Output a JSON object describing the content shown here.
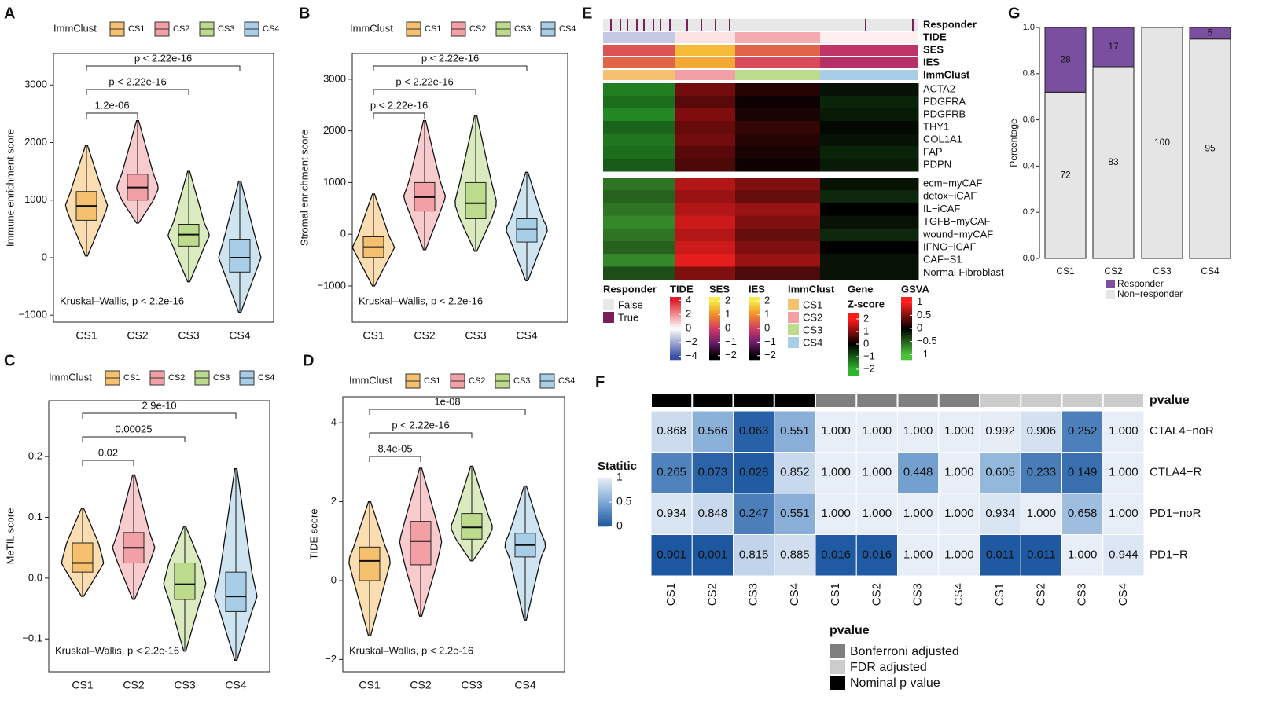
{
  "chart_data": [
    {
      "type": "box",
      "panel": "A",
      "ylabel": "Immune enrichment score",
      "legend_title": "ImmClust",
      "categories": [
        "CS1",
        "CS2",
        "CS3",
        "CS4"
      ],
      "colors": [
        "#f6c16f",
        "#f2a0a6",
        "#bcdb8c",
        "#a8cde6"
      ],
      "ylim": [
        -1120,
        3550
      ],
      "yticks": [
        {
          "value": -1000,
          "label": "−1000"
        },
        0,
        1000,
        2000,
        3000
      ],
      "stats": [
        {
          "min": 30,
          "q1": 650,
          "median": 900,
          "q3": 1150,
          "max": 1950
        },
        {
          "min": 600,
          "q1": 1000,
          "median": 1220,
          "q3": 1450,
          "max": 2380
        },
        {
          "min": -420,
          "q1": 200,
          "median": 400,
          "q3": 580,
          "max": 1500
        },
        {
          "min": -950,
          "q1": -250,
          "median": 0,
          "q3": 320,
          "max": 1330
        }
      ],
      "comparisons": [
        "1.2e-06",
        "p < 2.22e-16",
        "p < 2.22e-16"
      ],
      "annotation": "Kruskal–Wallis, p < 2.2e-16"
    },
    {
      "type": "box",
      "panel": "B",
      "ylabel": "Stromal enrichment score",
      "legend_title": "ImmClust",
      "categories": [
        "CS1",
        "CS2",
        "CS3",
        "CS4"
      ],
      "colors": [
        "#f6c16f",
        "#f2a0a6",
        "#bcdb8c",
        "#a8cde6"
      ],
      "ylim": [
        -1700,
        3500
      ],
      "yticks": [
        {
          "value": -1000,
          "label": "−1000"
        },
        0,
        1000,
        2000,
        3000
      ],
      "stats": [
        {
          "min": -1000,
          "q1": -450,
          "median": -250,
          "q3": -50,
          "max": 780
        },
        {
          "min": -300,
          "q1": 450,
          "median": 720,
          "q3": 1000,
          "max": 2200
        },
        {
          "min": -330,
          "q1": 300,
          "median": 600,
          "q3": 1000,
          "max": 2300
        },
        {
          "min": -900,
          "q1": -150,
          "median": 100,
          "q3": 300,
          "max": 1200
        }
      ],
      "comparisons": [
        "p < 2.22e-16",
        "p < 2.22e-16",
        "p < 2.22e-16"
      ],
      "annotation": "Kruskal–Wallis, p < 2.2e-16"
    },
    {
      "type": "box",
      "panel": "C",
      "ylabel": "MeTIL score",
      "legend_title": "ImmClust",
      "categories": [
        "CS1",
        "CS2",
        "CS3",
        "CS4"
      ],
      "colors": [
        "#f6c16f",
        "#f2a0a6",
        "#bcdb8c",
        "#a8cde6"
      ],
      "ylim": [
        -0.154,
        0.292
      ],
      "yticks": [
        {
          "value": -0.1,
          "label": "−0.1"
        },
        {
          "value": 0,
          "label": "0.0"
        },
        0.1,
        0.2
      ],
      "stats": [
        {
          "min": -0.03,
          "q1": 0.01,
          "median": 0.025,
          "q3": 0.058,
          "max": 0.115
        },
        {
          "min": -0.035,
          "q1": 0.025,
          "median": 0.05,
          "q3": 0.075,
          "max": 0.17
        },
        {
          "min": -0.12,
          "q1": -0.035,
          "median": -0.01,
          "q3": 0.025,
          "max": 0.085
        },
        {
          "min": -0.135,
          "q1": -0.055,
          "median": -0.03,
          "q3": 0.01,
          "max": 0.18
        }
      ],
      "comparisons": [
        "0.02",
        "0.00025",
        "2.9e-10"
      ],
      "annotation": "Kruskal–Wallis, p < 2.2e-16"
    },
    {
      "type": "box",
      "panel": "D",
      "ylabel": "TIDE score",
      "legend_title": "ImmClust",
      "categories": [
        "CS1",
        "CS2",
        "CS3",
        "CS4"
      ],
      "colors": [
        "#f6c16f",
        "#f2a0a6",
        "#bcdb8c",
        "#a8cde6"
      ],
      "ylim": [
        -2.31,
        4.66
      ],
      "yticks": [
        {
          "value": -2,
          "label": "−2"
        },
        0,
        2,
        4
      ],
      "stats": [
        {
          "min": -1.4,
          "q1": 0,
          "median": 0.5,
          "q3": 0.85,
          "max": 2
        },
        {
          "min": -0.9,
          "q1": 0.4,
          "median": 1,
          "q3": 1.5,
          "max": 2.85
        },
        {
          "min": 0.5,
          "q1": 1.05,
          "median": 1.35,
          "q3": 1.7,
          "max": 2.9
        },
        {
          "min": -1,
          "q1": 0.6,
          "median": 0.9,
          "q3": 1.2,
          "max": 2.4
        }
      ],
      "comparisons": [
        "8.4e-05",
        "p < 2.22e-16",
        "1e-08"
      ],
      "annotation": "Kruskal–Wallis, p < 2.2e-16"
    },
    {
      "type": "heatmap",
      "panel": "E",
      "clusters": [
        "CS1",
        "CS2",
        "CS3",
        "CS4"
      ],
      "cluster_colors": [
        "#f6c16f",
        "#f2a0a6",
        "#bcdb8c",
        "#a8cde6"
      ],
      "responder": {
        "name": "Responder",
        "levels": [
          "False",
          "True"
        ],
        "colors": [
          "#e8e8e8",
          "#7a1f5c"
        ],
        "values": [
          0.28,
          0.17,
          0,
          0.05
        ]
      },
      "tide": {
        "name": "TIDE",
        "values": [
          -1.2,
          0.5,
          1.5,
          0.3
        ],
        "lim": [
          -4.5,
          4.5
        ],
        "ticks": [
          4,
          2,
          0,
          {
            "value": -2,
            "label": "−2"
          },
          {
            "value": -4,
            "label": "−4"
          }
        ]
      },
      "ses": {
        "name": "SES",
        "values": [
          0.3,
          1.5,
          0.5,
          -0.2
        ],
        "lim": [
          -2.3,
          2.3
        ],
        "ticks": [
          2,
          1,
          0,
          {
            "value": -1,
            "label": "−1"
          },
          {
            "value": -2,
            "label": "−2"
          }
        ]
      },
      "ies": {
        "name": "IES",
        "values": [
          0.5,
          1.3,
          0.2,
          -0.3
        ],
        "lim": [
          -2.3,
          2.3
        ],
        "ticks": [
          2,
          1,
          0,
          {
            "value": -1,
            "label": "−1"
          },
          {
            "value": -2,
            "label": "−2"
          }
        ]
      },
      "immclust": {
        "name": "ImmClust"
      },
      "genes": {
        "rows": [
          "ACTA2",
          "PDGFRA",
          "PDGFRB",
          "THY1",
          "COL1A1",
          "FAP",
          "PDPN"
        ],
        "values": [
          [
            -1.4,
            0.9,
            0.3,
            -0.2
          ],
          [
            -1.2,
            0.7,
            0.1,
            -0.4
          ],
          [
            -1.5,
            1.0,
            0.2,
            -0.3
          ],
          [
            -1.1,
            0.8,
            0.4,
            -0.1
          ],
          [
            -1.3,
            0.9,
            0.3,
            -0.2
          ],
          [
            -1.2,
            0.7,
            0.2,
            -0.4
          ],
          [
            -1.0,
            0.6,
            0.1,
            -0.3
          ]
        ],
        "legend_title": [
          "Gene",
          "Z-score"
        ],
        "lim": [
          -2.5,
          2.5
        ],
        "ticks": [
          2,
          1,
          0,
          {
            "value": -1,
            "label": "−1"
          },
          {
            "value": -2,
            "label": "−2"
          }
        ]
      },
      "gsva": {
        "rows": [
          "ecm−myCAF",
          "detox−iCAF",
          "IL−iCAF",
          "TGFB−myCAF",
          "wound−myCAF",
          "IFNG−iCAF",
          "CAF−S1",
          "Normal Fibroblast"
        ],
        "values": [
          [
            -0.6,
            0.7,
            0.5,
            -0.1
          ],
          [
            -0.5,
            0.6,
            0.4,
            -0.2
          ],
          [
            -0.6,
            0.7,
            0.6,
            0.0
          ],
          [
            -0.7,
            0.8,
            0.5,
            -0.1
          ],
          [
            -0.6,
            0.7,
            0.4,
            -0.2
          ],
          [
            -0.5,
            0.8,
            0.5,
            0.0
          ],
          [
            -0.7,
            0.9,
            0.6,
            -0.1
          ],
          [
            -0.4,
            0.5,
            0.3,
            -0.1
          ]
        ],
        "legend_title": "GSVA",
        "lim": [
          -1.2,
          1.2
        ],
        "ticks": [
          1,
          0.5,
          0,
          {
            "value": -0.5,
            "label": "−0.5"
          },
          {
            "value": -1,
            "label": "−1"
          }
        ]
      }
    },
    {
      "type": "table_heatmap",
      "panel": "F",
      "columns": [
        "CS1",
        "CS2",
        "CS3",
        "CS4",
        "CS1",
        "CS2",
        "CS3",
        "CS4",
        "CS1",
        "CS2",
        "CS3",
        "CS4"
      ],
      "rows": [
        "CTAL4−noR",
        "CTLA4−R",
        "PD1−noR",
        "PD1−R"
      ],
      "values": [
        [
          0.868,
          0.566,
          0.063,
          0.551,
          1,
          1,
          1,
          1,
          0.992,
          0.906,
          0.252,
          1
        ],
        [
          0.265,
          0.073,
          0.028,
          0.852,
          1,
          1,
          0.448,
          1,
          0.605,
          0.233,
          0.149,
          1
        ],
        [
          0.934,
          0.848,
          0.247,
          0.551,
          1,
          1,
          1,
          1,
          0.934,
          1,
          0.658,
          1
        ],
        [
          0.001,
          0.001,
          0.815,
          0.885,
          0.016,
          0.016,
          1,
          1,
          0.011,
          0.011,
          1,
          0.944
        ]
      ],
      "value_labels": [
        [
          "0.868",
          "0.566",
          "0.063",
          "0.551",
          "1.000",
          "1.000",
          "1.000",
          "1.000",
          "0.992",
          "0.906",
          "0.252",
          "1.000"
        ],
        [
          "0.265",
          "0.073",
          "0.028",
          "0.852",
          "1.000",
          "1.000",
          "0.448",
          "1.000",
          "0.605",
          "0.233",
          "0.149",
          "1.000"
        ],
        [
          "0.934",
          "0.848",
          "0.247",
          "0.551",
          "1.000",
          "1.000",
          "1.000",
          "1.000",
          "0.934",
          "1.000",
          "0.658",
          "1.000"
        ],
        [
          "0.001",
          "0.001",
          "0.815",
          "0.885",
          "0.016",
          "0.016",
          "1.000",
          "1.000",
          "0.011",
          "0.011",
          "1.000",
          "0.944"
        ]
      ],
      "pvalue_title": "pvalue",
      "pvalue_groups": [
        {
          "name": "Nominal p value",
          "color": "#000000"
        },
        {
          "name": "Bonferroni adjusted",
          "color": "#7f7f7f"
        },
        {
          "name": "FDR adjusted",
          "color": "#cccccc"
        }
      ],
      "legend_title": "Statitic",
      "lim": [
        0,
        1
      ],
      "ticks": [
        1,
        0.5,
        0
      ]
    },
    {
      "type": "stacked_bar",
      "panel": "G",
      "ylabel": "Percentage",
      "categories": [
        "CS1",
        "CS2",
        "CS3",
        "CS4"
      ],
      "series": [
        {
          "name": "Responder",
          "color": "#7b4fa0",
          "values": [
            0.28,
            0.17,
            0,
            0.05
          ],
          "value_labels": [
            "28",
            "17",
            null,
            "5"
          ]
        },
        {
          "name": "Non−responder",
          "color": "#e5e5e5",
          "values": [
            0.72,
            0.83,
            1,
            0.95
          ],
          "value_labels": [
            "72",
            "83",
            "100",
            "95"
          ]
        }
      ],
      "ylim": [
        0,
        1
      ],
      "yticks": [
        {
          "value": 0,
          "label": "0.0"
        },
        0.2,
        0.4,
        0.6,
        0.8,
        {
          "value": 1,
          "label": "1.0"
        }
      ]
    }
  ]
}
